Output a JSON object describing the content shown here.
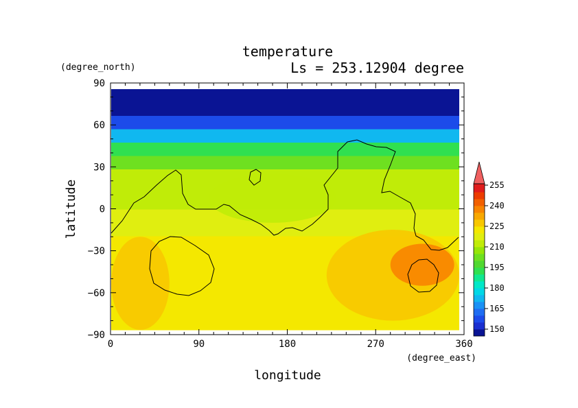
{
  "chart_data": {
    "type": "heatmap",
    "title": "temperature",
    "subtitle": "Ls = 253.12904 degree",
    "xlabel": "longitude",
    "ylabel": "latitude",
    "x_unit": "(degree_east)",
    "y_unit": "(degree_north)",
    "xlim": [
      0,
      360
    ],
    "ylim": [
      -90,
      90
    ],
    "x_ticks": [
      "0",
      "90",
      "180",
      "270",
      "360"
    ],
    "y_ticks": [
      "90",
      "60",
      "30",
      "0",
      "−30",
      "−60",
      "−90"
    ],
    "colorbar_ticks": [
      "255",
      "240",
      "225",
      "210",
      "195",
      "180",
      "165",
      "150"
    ],
    "colorbar_levels": [
      145,
      150,
      155,
      160,
      165,
      170,
      175,
      180,
      185,
      190,
      195,
      200,
      205,
      210,
      215,
      220,
      225,
      230,
      235,
      240,
      245,
      250,
      255
    ],
    "colorbar_colors": [
      "#0a1494",
      "#1a2fd0",
      "#1c4bea",
      "#1f6df2",
      "#1a91f5",
      "#10b8f0",
      "#00d8e6",
      "#00e8c8",
      "#10e890",
      "#30e050",
      "#50d830",
      "#6ee020",
      "#96e608",
      "#c0ec08",
      "#e0ee10",
      "#f4e800",
      "#f8c800",
      "#f8a800",
      "#f88400",
      "#f26000",
      "#ec3c00",
      "#e01c1c",
      "#f06060"
    ],
    "zonal_mean_temperature": {
      "lat": [
        85,
        75,
        65,
        55,
        45,
        35,
        25,
        15,
        5,
        -5,
        -15,
        -25,
        -35,
        -45,
        -55,
        -65,
        -75,
        -85
      ],
      "value": [
        147,
        149,
        157,
        174,
        190,
        203,
        212,
        214,
        214,
        216,
        219,
        223,
        224,
        224,
        224,
        224,
        224,
        224
      ]
    },
    "regional_anomalies": [
      {
        "region": "southern hemisphere warm region (west)",
        "lon": [
          0,
          60
        ],
        "lat": [
          -90,
          -20
        ],
        "value": 229
      },
      {
        "region": "southern hemisphere warm region (east)",
        "lon": [
          220,
          360
        ],
        "lat": [
          -80,
          -15
        ],
        "value": 229
      },
      {
        "region": "warm core",
        "lon": [
          285,
          350
        ],
        "lat": [
          -55,
          -25
        ],
        "value": 236
      },
      {
        "region": "cool equatorial band",
        "lon": [
          100,
          230
        ],
        "lat": [
          -10,
          25
        ],
        "value": 211
      }
    ]
  }
}
